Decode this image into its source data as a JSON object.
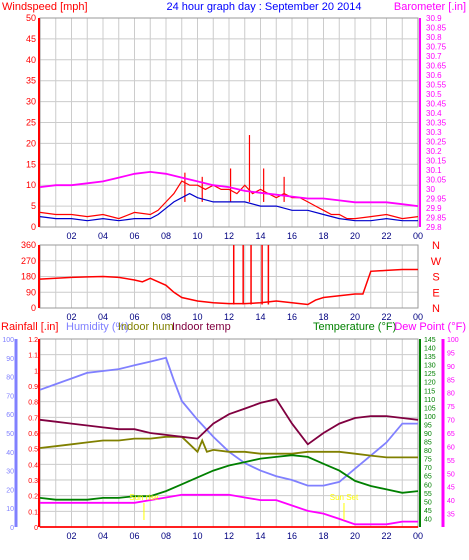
{
  "header": {
    "left_title": "Windspeed [mph]",
    "center_title": "24 hour graph day : September 20 2014",
    "right_title": "Barometer [.in]"
  },
  "mid_labels": {
    "rain": "Rainfall [.in]",
    "humidity": "Humidity (%)",
    "indoor_hum": "Indoor hum",
    "indoor_temp": "Indoor temp",
    "temperature": "Temperature (°F)",
    "dew_point": "Dew Point (°F)"
  },
  "annotations": [
    "Sun rise",
    "Sun Set"
  ],
  "colors": {
    "windspeed": "#ff0000",
    "gust_avg": "#0000cc",
    "barometer": "#ff00ff",
    "direction": "#ff0000",
    "rain": "#ff0000",
    "humidity": "#8080ff",
    "indoor_hum": "#808000",
    "indoor_temp": "#800040",
    "temperature": "#008000",
    "dew_point": "#ff00ff",
    "grid": "#cccccc",
    "axis_wind": "#ff0000",
    "axis_baro": "#ff00ff",
    "axis_hum": "#8080ff",
    "axis_temp": "#008000",
    "axis_dew": "#ff00ff",
    "annotation": "#ffff00"
  },
  "chart_data": [
    {
      "type": "line",
      "title": "24 hour graph day : September 20 2014",
      "x_ticks": [
        "02",
        "04",
        "06",
        "08",
        "10",
        "12",
        "14",
        "16",
        "18",
        "20",
        "22",
        "00"
      ],
      "x_range_hours": [
        0,
        24
      ],
      "grid": true,
      "y_left": {
        "label": "Windspeed [mph]",
        "range": [
          0,
          50
        ],
        "ticks": [
          "0",
          "5",
          "10",
          "15",
          "20",
          "25",
          "30",
          "35",
          "40",
          "45",
          "50"
        ]
      },
      "y_right": {
        "label": "Barometer [.in]",
        "range": [
          29.8,
          30.9
        ],
        "ticks": [
          "29.8",
          "29.85",
          "29.9",
          "29.95",
          "30",
          "30.05",
          "30.1",
          "30.15",
          "30.2",
          "30.25",
          "30.3",
          "30.35",
          "30.4",
          "30.45",
          "30.5",
          "30.55",
          "30.6",
          "30.65",
          "30.7",
          "30.75",
          "30.8",
          "30.85",
          "30.9"
        ]
      },
      "series": [
        {
          "name": "Windspeed",
          "axis": "left",
          "x": [
            0,
            1,
            2,
            3,
            4,
            5,
            6,
            7,
            7.5,
            8,
            8.5,
            9,
            9.5,
            10,
            10.5,
            11,
            11.5,
            12,
            12.5,
            13,
            13.5,
            14,
            14.5,
            15,
            15.5,
            16,
            16.5,
            17,
            17.5,
            18,
            18.5,
            19,
            19.5,
            20,
            21,
            22,
            23,
            24
          ],
          "values": [
            3.5,
            3,
            3,
            2.5,
            3,
            2,
            3.5,
            3,
            4,
            6,
            8,
            11,
            10,
            10,
            9,
            10,
            9,
            9,
            8,
            10,
            8,
            9,
            8,
            7,
            8,
            7,
            7,
            6,
            5,
            4,
            3,
            3,
            2,
            2,
            2.5,
            3,
            2,
            2.5
          ]
        },
        {
          "name": "Wind gust spikes",
          "axis": "left",
          "x": [
            9.2,
            10.3,
            12.1,
            13.3,
            14.2,
            15.5
          ],
          "values": [
            13,
            12,
            14,
            22,
            14,
            12
          ]
        },
        {
          "name": "Average windspeed",
          "axis": "left",
          "x": [
            0,
            1,
            2,
            3,
            4,
            5,
            6,
            7,
            7.5,
            8,
            8.5,
            9,
            9.5,
            10,
            11,
            12,
            13,
            14,
            15,
            16,
            17,
            18,
            19,
            20,
            21,
            22,
            23,
            24
          ],
          "values": [
            2.5,
            2,
            2,
            1.5,
            2,
            1.5,
            2,
            2,
            3,
            4.5,
            6,
            7,
            8,
            7,
            6,
            6,
            6,
            5,
            5,
            4,
            4,
            3,
            2,
            1.5,
            1.5,
            2,
            1.5,
            1.5
          ]
        },
        {
          "name": "Barometer",
          "axis": "right",
          "x": [
            0,
            1,
            2,
            3,
            4,
            5,
            6,
            7,
            8,
            9,
            10,
            11,
            12,
            13,
            14,
            15,
            16,
            17,
            18,
            19,
            20,
            21,
            22,
            23,
            24
          ],
          "values": [
            30.01,
            30.02,
            30.02,
            30.03,
            30.04,
            30.06,
            30.08,
            30.09,
            30.08,
            30.06,
            30.04,
            30.02,
            30.01,
            29.99,
            29.98,
            29.97,
            29.96,
            29.95,
            29.95,
            29.94,
            29.93,
            29.93,
            29.93,
            29.92,
            29.91
          ]
        }
      ]
    },
    {
      "type": "line",
      "title": "",
      "x_ticks": [
        "02",
        "04",
        "06",
        "08",
        "10",
        "12",
        "14",
        "16",
        "18",
        "20",
        "22",
        "00"
      ],
      "x_range_hours": [
        0,
        24
      ],
      "y_left": {
        "label": "",
        "range": [
          0,
          360
        ],
        "ticks": [
          "0",
          "90",
          "180",
          "270",
          "360"
        ]
      },
      "y_right": {
        "label": "",
        "ticks": [
          "N",
          "W",
          "S",
          "E",
          "N"
        ]
      },
      "series": [
        {
          "name": "Wind direction",
          "axis": "left",
          "x": [
            0,
            1,
            2,
            3,
            4,
            5,
            6,
            6.5,
            7,
            8,
            8.5,
            9,
            10,
            11,
            12,
            13,
            14,
            15,
            16,
            17,
            17.5,
            18,
            19,
            20,
            20.5,
            21,
            22,
            23,
            24
          ],
          "values": [
            165,
            170,
            175,
            178,
            180,
            175,
            160,
            150,
            170,
            130,
            90,
            60,
            40,
            30,
            25,
            25,
            30,
            40,
            30,
            20,
            45,
            60,
            70,
            80,
            80,
            210,
            215,
            220,
            220
          ]
        },
        {
          "name": "Wind direction spikes",
          "axis": "left",
          "x": [
            12.3,
            12.9,
            13.4,
            14.1,
            14.5
          ],
          "values": [
            360,
            360,
            360,
            360,
            360
          ]
        }
      ]
    },
    {
      "type": "line",
      "title": "",
      "x_ticks": [
        "02",
        "04",
        "06",
        "08",
        "10",
        "12",
        "14",
        "16",
        "18",
        "20",
        "22",
        "00"
      ],
      "x_range_hours": [
        0,
        24
      ],
      "y_left_rain": {
        "label": "Rainfall [.in]",
        "range": [
          0,
          1.2
        ],
        "ticks": [
          "0",
          "0.1",
          "0.2",
          "0.3",
          "0.4",
          "0.5",
          "0.6",
          "0.7",
          "0.8",
          "0.9",
          "1",
          "1.1",
          "1.2"
        ]
      },
      "y_left_hum": {
        "label": "Humidity (%)",
        "range": [
          0,
          100
        ],
        "ticks": [
          "0",
          "10",
          "20",
          "30",
          "40",
          "50",
          "60",
          "70",
          "80",
          "90",
          "100"
        ]
      },
      "y_right_temp": {
        "label": "Temperature (°F)",
        "range": [
          35,
          145
        ],
        "ticks": [
          "40",
          "45",
          "50",
          "55",
          "60",
          "65",
          "70",
          "75",
          "80",
          "85",
          "90",
          "95",
          "100",
          "105",
          "110",
          "115",
          "120",
          "125",
          "130",
          "135",
          "140",
          "145"
        ]
      },
      "y_right_dew": {
        "label": "Dew Point (°F)",
        "range": [
          30,
          100
        ],
        "ticks": [
          "35",
          "40",
          "45",
          "50",
          "55",
          "60",
          "65",
          "70",
          "75",
          "80",
          "85",
          "90",
          "95",
          "100"
        ]
      },
      "series": [
        {
          "name": "Humidity",
          "axis": "hum",
          "x": [
            0,
            1,
            2,
            3,
            4,
            5,
            6,
            7,
            8,
            8.5,
            9,
            10,
            11,
            12,
            13,
            14,
            15,
            16,
            17,
            18,
            19,
            20,
            21,
            22,
            23,
            24
          ],
          "values": [
            73,
            76,
            79,
            82,
            83,
            84,
            86,
            88,
            90,
            78,
            67,
            57,
            48,
            40,
            34,
            30,
            27,
            25,
            22,
            22,
            24,
            31,
            38,
            45,
            55,
            55
          ]
        },
        {
          "name": "Indoor hum",
          "axis": "hum",
          "x": [
            0,
            1,
            2,
            3,
            4,
            5,
            6,
            7,
            8,
            9,
            10,
            10.3,
            10.6,
            11,
            12,
            13,
            14,
            15,
            16,
            17,
            18,
            19,
            20,
            21,
            22,
            23,
            24
          ],
          "values": [
            42,
            43,
            44,
            45,
            46,
            46,
            47,
            47,
            48,
            48,
            40,
            46,
            40,
            41,
            40,
            40,
            39,
            39,
            39,
            40,
            40,
            40,
            39,
            38,
            37,
            37,
            37
          ]
        },
        {
          "name": "Indoor temp",
          "axis": "hum",
          "x": [
            0,
            1,
            2,
            3,
            4,
            5,
            6,
            7,
            8,
            9,
            10,
            11,
            12,
            13,
            14,
            15,
            16,
            17,
            18,
            19,
            20,
            21,
            22,
            23,
            24
          ],
          "values": [
            57,
            56,
            55,
            54,
            53,
            52,
            52,
            50,
            49,
            48,
            47,
            55,
            60,
            63,
            66,
            68,
            55,
            44,
            50,
            55,
            58,
            59,
            59,
            58,
            57
          ]
        },
        {
          "name": "Temperature",
          "axis": "temp",
          "x": [
            0,
            1,
            2,
            3,
            4,
            5,
            6,
            7,
            8,
            9,
            10,
            11,
            12,
            13,
            14,
            15,
            16,
            17,
            18,
            19,
            20,
            21,
            22,
            23,
            24
          ],
          "values": [
            52,
            51,
            51,
            51,
            52,
            52,
            53,
            53,
            56,
            60,
            64,
            68,
            71,
            73,
            75,
            76,
            77,
            76,
            72,
            68,
            62,
            59,
            57,
            55,
            56
          ]
        },
        {
          "name": "Dew point",
          "axis": "dew",
          "x": [
            0,
            1,
            2,
            3,
            4,
            5,
            6,
            7,
            8,
            9,
            10,
            11,
            12,
            13,
            14,
            15,
            16,
            17,
            18,
            19,
            20,
            21,
            22,
            23,
            24
          ],
          "values": [
            39,
            39,
            39,
            39,
            39,
            39,
            39,
            40,
            41,
            42,
            42,
            42,
            42,
            41,
            40,
            40,
            38,
            36,
            35,
            33,
            31,
            31,
            31,
            32,
            32
          ]
        },
        {
          "name": "Rainfall",
          "axis": "rain",
          "x": [
            0,
            24
          ],
          "values": [
            0,
            0
          ]
        }
      ],
      "annotations": [
        {
          "text": "Sun rise",
          "x_hour": 6.6
        },
        {
          "text": "Sun Set",
          "x_hour": 19.3
        }
      ]
    }
  ]
}
